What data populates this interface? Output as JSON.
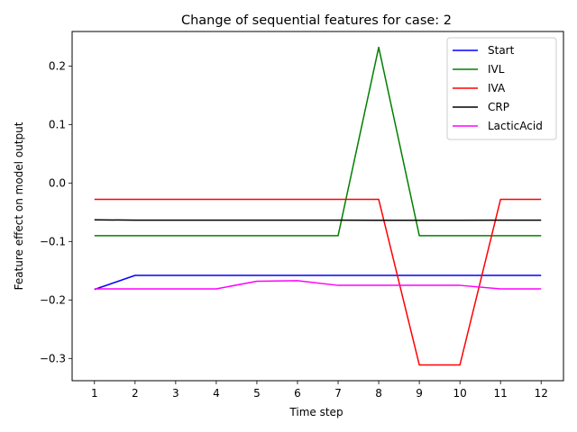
{
  "chart_data": {
    "type": "line",
    "title": "Change of sequential features for case: 2",
    "xlabel": "Time step",
    "ylabel": "Feature effect on model output",
    "x": [
      1,
      2,
      3,
      4,
      5,
      6,
      7,
      8,
      9,
      10,
      11,
      12
    ],
    "xticks": [
      "1",
      "2",
      "3",
      "4",
      "5",
      "6",
      "7",
      "8",
      "9",
      "10",
      "11",
      "12"
    ],
    "yticks": [
      0.2,
      0.1,
      0.0,
      -0.1,
      -0.2,
      -0.3
    ],
    "ytick_labels": [
      "0.2",
      "0.1",
      "0.0",
      "−0.1",
      "−0.2",
      "−0.3"
    ],
    "xlim": [
      0.45,
      12.55
    ],
    "ylim": [
      -0.338,
      0.259
    ],
    "grid": false,
    "legend_position": "top-right",
    "series": [
      {
        "name": "Start",
        "color": "#0000ff",
        "values": [
          -0.182,
          -0.158,
          -0.158,
          -0.158,
          -0.158,
          -0.158,
          -0.158,
          -0.158,
          -0.158,
          -0.158,
          -0.158,
          -0.158
        ]
      },
      {
        "name": "IVL",
        "color": "#008000",
        "values": [
          -0.09,
          -0.09,
          -0.09,
          -0.09,
          -0.09,
          -0.09,
          -0.09,
          0.232,
          -0.09,
          -0.09,
          -0.09,
          -0.09
        ]
      },
      {
        "name": "IVA",
        "color": "#ff0000",
        "values": [
          -0.028,
          -0.028,
          -0.028,
          -0.028,
          -0.028,
          -0.028,
          -0.028,
          -0.028,
          -0.311,
          -0.311,
          -0.028,
          -0.028
        ]
      },
      {
        "name": "CRP",
        "color": "#000000",
        "values": [
          -0.063,
          -0.0635,
          -0.0635,
          -0.0635,
          -0.0635,
          -0.0635,
          -0.0635,
          -0.0637,
          -0.0637,
          -0.0637,
          -0.0635,
          -0.0635
        ]
      },
      {
        "name": "LacticAcid",
        "color": "#ff00ff",
        "values": [
          -0.181,
          -0.181,
          -0.181,
          -0.181,
          -0.168,
          -0.167,
          -0.175,
          -0.175,
          -0.175,
          -0.175,
          -0.181,
          -0.181
        ]
      }
    ]
  }
}
